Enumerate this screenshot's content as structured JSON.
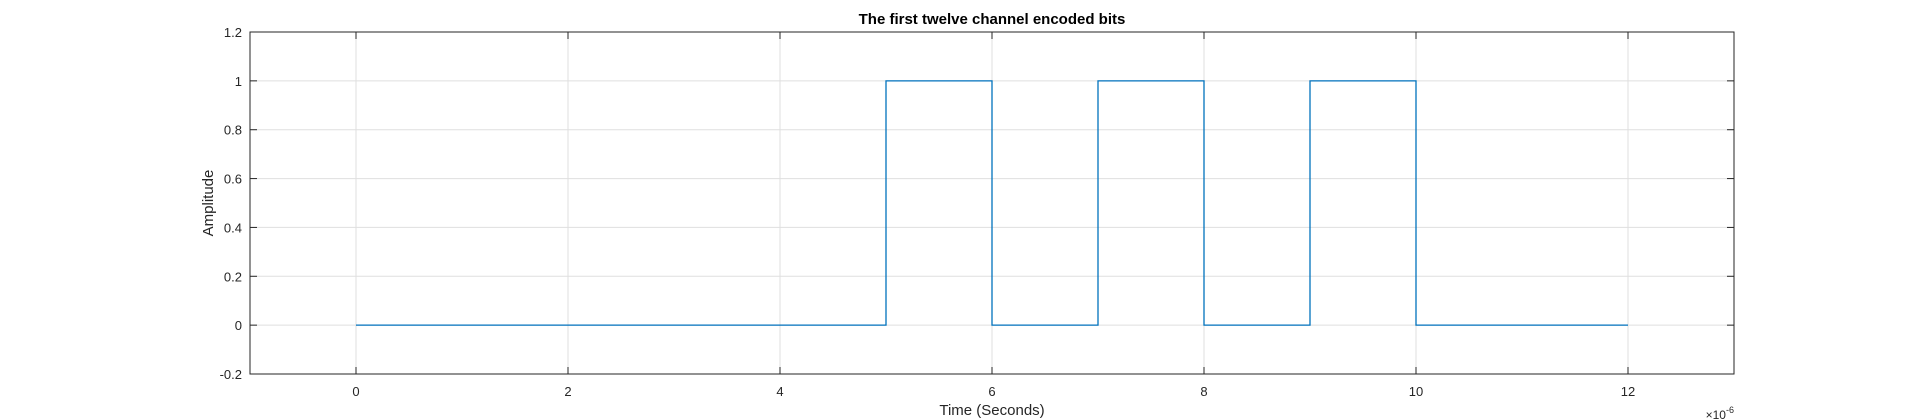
{
  "chart_data": {
    "type": "line",
    "step": true,
    "title": "The first twelve channel encoded bits",
    "xlabel": "Time (Seconds)",
    "ylabel": "Amplitude",
    "x_exponent_base": "×10",
    "x_exponent_power": "-6",
    "xlim": [
      -1,
      13
    ],
    "ylim": [
      -0.2,
      1.2
    ],
    "grid": true,
    "x_ticks": [
      0,
      2,
      4,
      6,
      8,
      10,
      12
    ],
    "x_tick_labels": [
      "0",
      "2",
      "4",
      "6",
      "8",
      "10",
      "12"
    ],
    "y_ticks": [
      -0.2,
      0,
      0.2,
      0.4,
      0.6,
      0.8,
      1,
      1.2
    ],
    "y_tick_labels": [
      "-0.2",
      "0",
      "0.2",
      "0.4",
      "0.6",
      "0.8",
      "1",
      "1.2"
    ],
    "series": [
      {
        "color": "#0072BD",
        "points": [
          [
            0,
            0
          ],
          [
            5,
            0
          ],
          [
            5,
            1
          ],
          [
            6,
            1
          ],
          [
            6,
            0
          ],
          [
            7,
            0
          ],
          [
            7,
            1
          ],
          [
            8,
            1
          ],
          [
            8,
            0
          ],
          [
            9,
            0
          ],
          [
            9,
            1
          ],
          [
            10,
            1
          ],
          [
            10,
            0
          ],
          [
            12,
            0
          ]
        ]
      }
    ]
  }
}
